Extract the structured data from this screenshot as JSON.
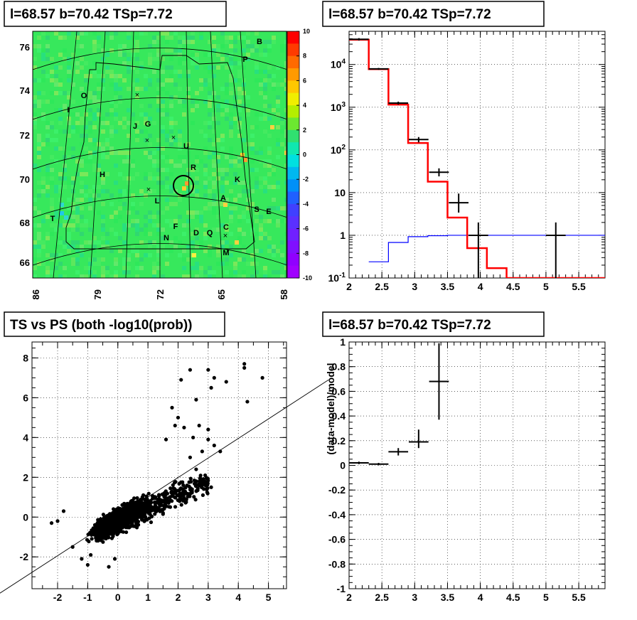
{
  "panels": {
    "map_title": "l=68.57 b=70.42 TSp=7.72",
    "spectrum_title": "l=68.57 b=70.42 TSp=7.72",
    "scatter_title": "TS vs PS (both -log10(prob))",
    "residual_title": "l=68.57 b=70.42 TSp=7.72"
  },
  "colors": {
    "map_background": "#37e85c",
    "data_points": "#000000",
    "model_hist": "#ff0000",
    "background_hist": "#0000ff",
    "fit_line": "#000000"
  },
  "chart_data": [
    {
      "id": "map",
      "type": "heatmap",
      "title": "l=68.57 b=70.42 TSp=7.72",
      "x_ticks": [
        "86",
        "79",
        "72",
        "65",
        "58"
      ],
      "y_ticks": [
        "66",
        "68",
        "70",
        "72",
        "74",
        "76"
      ],
      "colorbar_ticks": [
        "10",
        "8",
        "6",
        "4",
        "2",
        "0",
        "-2",
        "-4",
        "-6",
        "-8",
        "-10"
      ],
      "zlim": [
        -10,
        10
      ],
      "source_markers": [
        {
          "label": "B"
        },
        {
          "label": "P"
        },
        {
          "label": "O"
        },
        {
          "label": "I"
        },
        {
          "label": "J"
        },
        {
          "label": "G"
        },
        {
          "label": "U"
        },
        {
          "label": "R"
        },
        {
          "label": "H"
        },
        {
          "label": "K"
        },
        {
          "label": "L"
        },
        {
          "label": "A"
        },
        {
          "label": "S"
        },
        {
          "label": "E"
        },
        {
          "label": "T"
        },
        {
          "label": "F"
        },
        {
          "label": "D"
        },
        {
          "label": "Q"
        },
        {
          "label": "C"
        },
        {
          "label": "N"
        },
        {
          "label": "M"
        }
      ],
      "circled_source": "R"
    },
    {
      "id": "spectrum",
      "type": "line",
      "title": "l=68.57 b=70.42 TSp=7.72",
      "x_ticks": [
        "2",
        "2.5",
        "3",
        "3.5",
        "4",
        "4.5",
        "5",
        "5.5"
      ],
      "y_ticks": [
        "10^-1",
        "1",
        "10",
        "10^2",
        "10^3",
        "10^4"
      ],
      "xlim": [
        2,
        5.9
      ],
      "ylim": [
        0.1,
        60000
      ],
      "log_y": true,
      "grid": true,
      "model_bins": [
        {
          "x0": 2.0,
          "x1": 2.3,
          "y": 38000
        },
        {
          "x0": 2.3,
          "x1": 2.6,
          "y": 7800
        },
        {
          "x0": 2.6,
          "x1": 2.9,
          "y": 1150
        },
        {
          "x0": 2.9,
          "x1": 3.2,
          "y": 145
        },
        {
          "x0": 3.2,
          "x1": 3.5,
          "y": 18
        },
        {
          "x0": 3.5,
          "x1": 3.8,
          "y": 2.6
        },
        {
          "x0": 3.8,
          "x1": 4.1,
          "y": 0.5
        },
        {
          "x0": 4.1,
          "x1": 4.4,
          "y": 0.17
        },
        {
          "x0": 4.4,
          "x1": 5.9,
          "y": 0.1
        }
      ],
      "background_bins": [
        {
          "x0": 2.3,
          "x1": 2.6,
          "y": 0.24
        },
        {
          "x0": 2.6,
          "x1": 2.9,
          "y": 0.68
        },
        {
          "x0": 2.9,
          "x1": 3.2,
          "y": 0.93
        },
        {
          "x0": 3.2,
          "x1": 3.5,
          "y": 0.98
        },
        {
          "x0": 3.5,
          "x1": 5.9,
          "y": 1.0
        }
      ],
      "data_points": [
        {
          "x": 2.15,
          "xerr": 0.15,
          "y": 39000,
          "ylo": 36500,
          "yhi": 41500
        },
        {
          "x": 2.45,
          "xerr": 0.15,
          "y": 7900,
          "ylo": 7500,
          "yhi": 8300
        },
        {
          "x": 2.75,
          "xerr": 0.15,
          "y": 1250,
          "ylo": 1150,
          "yhi": 1350
        },
        {
          "x": 3.06,
          "xerr": 0.15,
          "y": 175,
          "ylo": 150,
          "yhi": 200
        },
        {
          "x": 3.37,
          "xerr": 0.15,
          "y": 30,
          "ylo": 24,
          "yhi": 37
        },
        {
          "x": 3.67,
          "xerr": 0.15,
          "y": 5.8,
          "ylo": 3.4,
          "yhi": 9.5
        },
        {
          "x": 3.97,
          "xerr": 0.15,
          "y": 1.0,
          "ylo": 0.1,
          "yhi": 2.0
        },
        {
          "x": 5.15,
          "xerr": 0.15,
          "y": 1.0,
          "ylo": 0.1,
          "yhi": 2.0
        }
      ]
    },
    {
      "id": "scatter",
      "type": "scatter",
      "title": "TS vs PS (both -log10(prob))",
      "x_ticks": [
        "-2",
        "-1",
        "0",
        "1",
        "2",
        "3",
        "4",
        "5"
      ],
      "y_ticks": [
        "-2",
        "0",
        "2",
        "4",
        "6",
        "8"
      ],
      "xlim": [
        -2.85,
        5.6
      ],
      "ylim": [
        -3.6,
        8.8
      ],
      "grid": true,
      "fit_line": {
        "x0": -4.4,
        "y0": -4.3,
        "x1": 7.0,
        "y1": 6.9
      },
      "outlier_points": [
        {
          "x": 4.2,
          "y": 7.7
        },
        {
          "x": 4.2,
          "y": 7.5
        },
        {
          "x": 4.8,
          "y": 7.0
        },
        {
          "x": 3.0,
          "y": 7.4
        },
        {
          "x": 3.2,
          "y": 7.0
        },
        {
          "x": 2.1,
          "y": 6.9
        },
        {
          "x": 2.4,
          "y": 7.4
        },
        {
          "x": 3.6,
          "y": 6.8
        },
        {
          "x": 3.1,
          "y": 6.5
        },
        {
          "x": 4.3,
          "y": 5.8
        },
        {
          "x": 2.6,
          "y": 5.9
        },
        {
          "x": 1.8,
          "y": 5.5
        },
        {
          "x": 2.0,
          "y": 5.0
        },
        {
          "x": 1.9,
          "y": 4.6
        },
        {
          "x": 2.2,
          "y": 4.5
        },
        {
          "x": 2.7,
          "y": 4.6
        },
        {
          "x": 3.0,
          "y": 4.4
        },
        {
          "x": 1.6,
          "y": 3.9
        },
        {
          "x": 2.5,
          "y": 4.0
        },
        {
          "x": 3.0,
          "y": 3.9
        },
        {
          "x": 2.8,
          "y": 3.3
        },
        {
          "x": 3.2,
          "y": 3.6
        },
        {
          "x": 2.4,
          "y": 3.0
        },
        {
          "x": 3.4,
          "y": 3.3
        },
        {
          "x": 2.6,
          "y": 2.4
        },
        {
          "x": 2.9,
          "y": 2.1
        },
        {
          "x": 3.1,
          "y": 1.5
        },
        {
          "x": -2.0,
          "y": -0.2
        },
        {
          "x": -2.2,
          "y": -0.3
        },
        {
          "x": -1.8,
          "y": 0.3
        },
        {
          "x": -1.5,
          "y": -1.5
        },
        {
          "x": -1.2,
          "y": -2.1
        },
        {
          "x": -1.0,
          "y": -2.4
        },
        {
          "x": -0.9,
          "y": -1.9
        },
        {
          "x": -0.3,
          "y": -2.5
        },
        {
          "x": -0.1,
          "y": -2.1
        }
      ]
    },
    {
      "id": "residual",
      "type": "scatter",
      "title": "l=68.57 b=70.42 TSp=7.72",
      "ylabel": "(data-model)/model",
      "x_ticks": [
        "2",
        "2.5",
        "3",
        "3.5",
        "4",
        "4.5",
        "5",
        "5.5"
      ],
      "y_ticks": [
        "-1",
        "-0.8",
        "-0.6",
        "-0.4",
        "-0.2",
        "0",
        "0.2",
        "0.4",
        "0.6",
        "0.8",
        "1"
      ],
      "xlim": [
        2,
        5.9
      ],
      "ylim": [
        -1,
        1
      ],
      "grid": true,
      "data_points": [
        {
          "x": 2.15,
          "xerr": 0.15,
          "y": 0.02,
          "ylo": 0.01,
          "yhi": 0.03
        },
        {
          "x": 2.45,
          "xerr": 0.15,
          "y": 0.01,
          "ylo": 0.0,
          "yhi": 0.02
        },
        {
          "x": 2.75,
          "xerr": 0.15,
          "y": 0.11,
          "ylo": 0.08,
          "yhi": 0.14
        },
        {
          "x": 3.06,
          "xerr": 0.15,
          "y": 0.19,
          "ylo": 0.14,
          "yhi": 0.29
        },
        {
          "x": 3.37,
          "xerr": 0.15,
          "y": 0.68,
          "ylo": 0.37,
          "yhi": 0.99
        }
      ]
    }
  ]
}
